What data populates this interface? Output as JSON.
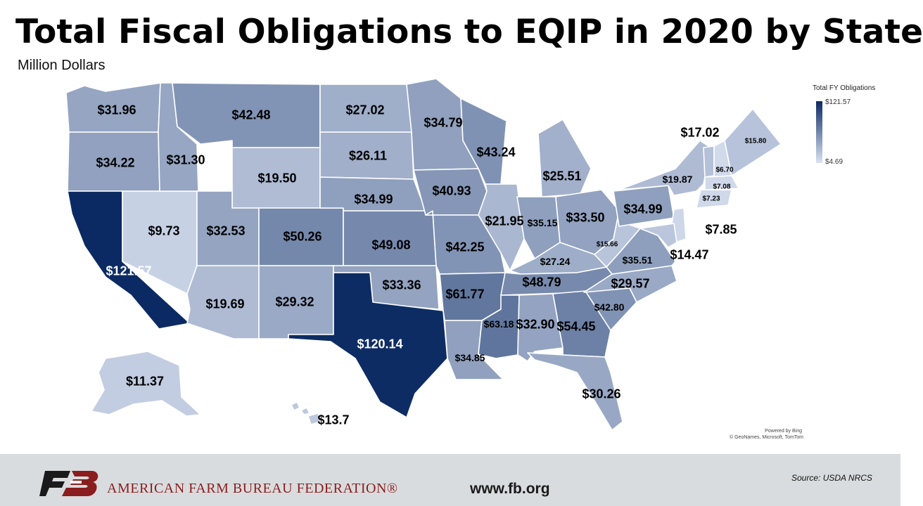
{
  "title": "Total Fiscal Obligations to EQIP in 2020 by State",
  "subtitle": "Million Dollars",
  "legend": {
    "title": "Total FY Obligations",
    "max_label": "$121.57",
    "min_label": "$4.69",
    "max_value": 121.57,
    "min_value": 4.69,
    "color_high": "#0b2a63",
    "color_low": "#dbe3f2"
  },
  "map_credit": {
    "powered_by": "Powered by Bing",
    "copyright": "© GeoNames, Microsoft, TomTom"
  },
  "footer": {
    "organization": "AMERICAN FARM BUREAU FEDERATION®",
    "website": "www.fb.org",
    "source": "Source:  USDA  NRCS"
  },
  "states": [
    {
      "id": "WA",
      "label": "$31.96",
      "value": 31.96
    },
    {
      "id": "OR",
      "label": "$34.22",
      "value": 34.22
    },
    {
      "id": "CA",
      "label": "$121.57",
      "value": 121.57
    },
    {
      "id": "NV",
      "label": "$9.73",
      "value": 9.73
    },
    {
      "id": "ID",
      "label": "$31.30",
      "value": 31.3
    },
    {
      "id": "MT",
      "label": "$42.48",
      "value": 42.48
    },
    {
      "id": "WY",
      "label": "$19.50",
      "value": 19.5
    },
    {
      "id": "UT",
      "label": "$32.53",
      "value": 32.53
    },
    {
      "id": "AZ",
      "label": "$19.69",
      "value": 19.69
    },
    {
      "id": "CO",
      "label": "$50.26",
      "value": 50.26
    },
    {
      "id": "NM",
      "label": "$29.32",
      "value": 29.32
    },
    {
      "id": "ND",
      "label": "$27.02",
      "value": 27.02
    },
    {
      "id": "SD",
      "label": "$26.11",
      "value": 26.11
    },
    {
      "id": "NE",
      "label": "$34.99",
      "value": 34.99
    },
    {
      "id": "KS",
      "label": "$49.08",
      "value": 49.08
    },
    {
      "id": "OK",
      "label": "$33.36",
      "value": 33.36
    },
    {
      "id": "TX",
      "label": "$120.14",
      "value": 120.14
    },
    {
      "id": "MN",
      "label": "$34.79",
      "value": 34.79
    },
    {
      "id": "IA",
      "label": "$40.93",
      "value": 40.93
    },
    {
      "id": "MO",
      "label": "$42.25",
      "value": 42.25
    },
    {
      "id": "AR",
      "label": "$61.77",
      "value": 61.77
    },
    {
      "id": "LA",
      "label": "$34.85",
      "value": 34.85
    },
    {
      "id": "WI",
      "label": "$43.24",
      "value": 43.24
    },
    {
      "id": "IL",
      "label": "$21.95",
      "value": 21.95
    },
    {
      "id": "MI",
      "label": "$25.51",
      "value": 25.51
    },
    {
      "id": "IN",
      "label": "$35.15",
      "value": 35.15
    },
    {
      "id": "OH",
      "label": "$33.50",
      "value": 33.5
    },
    {
      "id": "KY",
      "label": "$27.24",
      "value": 27.24
    },
    {
      "id": "TN",
      "label": "$48.79",
      "value": 48.79
    },
    {
      "id": "MS",
      "label": "$63.18",
      "value": 63.18
    },
    {
      "id": "AL",
      "label": "$32.90",
      "value": 32.9
    },
    {
      "id": "GA",
      "label": "$54.45",
      "value": 54.45
    },
    {
      "id": "FL",
      "label": "$30.26",
      "value": 30.26
    },
    {
      "id": "SC",
      "label": "$42.80",
      "value": 42.8
    },
    {
      "id": "NC",
      "label": "$29.57",
      "value": 29.57
    },
    {
      "id": "VA",
      "label": "$35.51",
      "value": 35.51
    },
    {
      "id": "WV",
      "label": "$15.66",
      "value": 15.66
    },
    {
      "id": "PA",
      "label": "$34.99",
      "value": 34.99
    },
    {
      "id": "NY",
      "label": "$19.87",
      "value": 19.87
    },
    {
      "id": "VT",
      "label": "$17.02",
      "value": 17.02
    },
    {
      "id": "NH",
      "label": "$6.70",
      "value": 6.7
    },
    {
      "id": "ME",
      "label": "$15.80",
      "value": 15.8
    },
    {
      "id": "MA",
      "label": "$7.08",
      "value": 7.08
    },
    {
      "id": "CT",
      "label": "$7.23",
      "value": 7.23
    },
    {
      "id": "NJ",
      "label": "$7.85",
      "value": 7.85
    },
    {
      "id": "MD",
      "label": "$14.47",
      "value": 14.47
    },
    {
      "id": "AK",
      "label": "$11.37",
      "value": 11.37
    },
    {
      "id": "HI",
      "label": "$13.7",
      "value": 13.7
    }
  ]
}
